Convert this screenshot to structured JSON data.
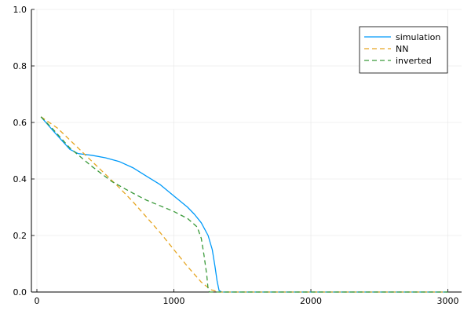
{
  "chart_data": {
    "type": "line",
    "title": "",
    "xlabel": "",
    "ylabel": "",
    "xlim": [
      0,
      3100
    ],
    "ylim": [
      0,
      1.0
    ],
    "x_ticks": [
      0,
      1000,
      2000,
      3000
    ],
    "x_tick_labels": [
      "0",
      "1000",
      "2000",
      "3000"
    ],
    "y_ticks": [
      0,
      0.2,
      0.4,
      0.6,
      0.8,
      1.0
    ],
    "y_tick_labels": [
      "0.0",
      "0.2",
      "0.4",
      "0.6",
      "0.8",
      "1.0"
    ],
    "grid": true,
    "legend_position": "top-right",
    "series": [
      {
        "name": "simulation",
        "color": "#009AF9",
        "dash": "solid",
        "points": [
          [
            30,
            0.62
          ],
          [
            120,
            0.57
          ],
          [
            240,
            0.505
          ],
          [
            300,
            0.49
          ],
          [
            400,
            0.484
          ],
          [
            500,
            0.475
          ],
          [
            600,
            0.462
          ],
          [
            700,
            0.44
          ],
          [
            800,
            0.41
          ],
          [
            900,
            0.38
          ],
          [
            1000,
            0.34
          ],
          [
            1100,
            0.3
          ],
          [
            1150,
            0.275
          ],
          [
            1200,
            0.245
          ],
          [
            1250,
            0.2
          ],
          [
            1280,
            0.15
          ],
          [
            1300,
            0.09
          ],
          [
            1315,
            0.04
          ],
          [
            1330,
            0.005
          ],
          [
            1350,
            0.0
          ],
          [
            2000,
            0.0
          ],
          [
            3000,
            0.0
          ]
        ]
      },
      {
        "name": "NN",
        "color": "#E6A520",
        "dash": "dashed",
        "points": [
          [
            30,
            0.62
          ],
          [
            150,
            0.58
          ],
          [
            300,
            0.51
          ],
          [
            450,
            0.44
          ],
          [
            600,
            0.37
          ],
          [
            700,
            0.32
          ],
          [
            800,
            0.265
          ],
          [
            900,
            0.21
          ],
          [
            1000,
            0.15
          ],
          [
            1100,
            0.09
          ],
          [
            1200,
            0.035
          ],
          [
            1270,
            0.008
          ],
          [
            1330,
            0.0
          ],
          [
            2000,
            0.0
          ],
          [
            3000,
            0.0
          ]
        ]
      },
      {
        "name": "inverted",
        "color": "#3A9A3A",
        "dash": "dashed",
        "points": [
          [
            30,
            0.62
          ],
          [
            120,
            0.575
          ],
          [
            240,
            0.51
          ],
          [
            400,
            0.445
          ],
          [
            550,
            0.39
          ],
          [
            700,
            0.35
          ],
          [
            800,
            0.325
          ],
          [
            900,
            0.305
          ],
          [
            1000,
            0.285
          ],
          [
            1100,
            0.26
          ],
          [
            1170,
            0.23
          ],
          [
            1200,
            0.19
          ],
          [
            1220,
            0.13
          ],
          [
            1240,
            0.06
          ],
          [
            1250,
            0.01
          ],
          [
            1260,
            0.0
          ],
          [
            2000,
            0.0
          ],
          [
            3000,
            0.0
          ]
        ]
      }
    ]
  }
}
